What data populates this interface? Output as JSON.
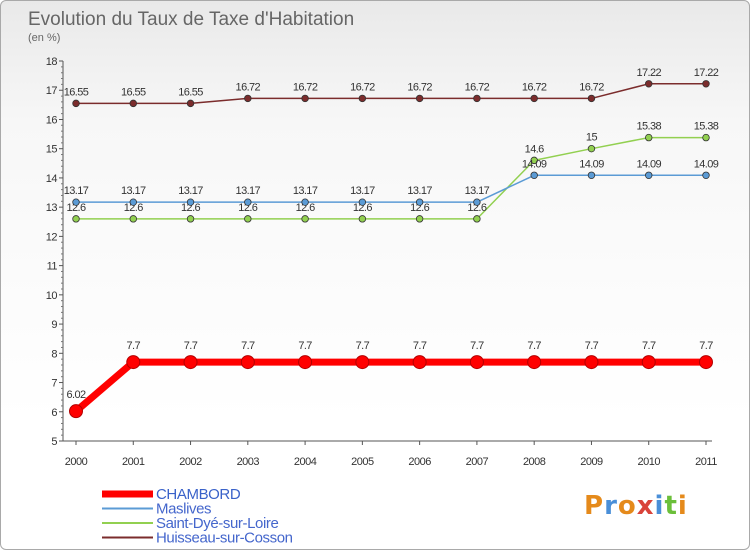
{
  "chart_data": {
    "type": "line",
    "title": "Evolution du Taux de Taxe d'Habitation",
    "subtitle": "(en %)",
    "x": [
      "2000",
      "2001",
      "2002",
      "2003",
      "2004",
      "2005",
      "2006",
      "2007",
      "2008",
      "2009",
      "2010",
      "2011"
    ],
    "ylim": [
      5,
      18
    ],
    "y_ticks": [
      5,
      6,
      7,
      8,
      9,
      10,
      11,
      12,
      13,
      14,
      15,
      16,
      17,
      18
    ],
    "grid": false,
    "legend_position": "bottom-left",
    "series": [
      {
        "name": "CHAMBORD",
        "color": "#ff0000",
        "values": [
          6.02,
          7.7,
          7.7,
          7.7,
          7.7,
          7.7,
          7.7,
          7.7,
          7.7,
          7.7,
          7.7,
          7.7
        ],
        "labels": [
          "6.02",
          "7.7",
          "7.7",
          "7.7",
          "7.7",
          "7.7",
          "7.7",
          "7.7",
          "7.7",
          "7.7",
          "7.7",
          "7.7"
        ]
      },
      {
        "name": "Maslives",
        "color": "#5b9bd5",
        "values": [
          13.17,
          13.17,
          13.17,
          13.17,
          13.17,
          13.17,
          13.17,
          13.17,
          14.09,
          14.09,
          14.09,
          14.09
        ],
        "labels": [
          "13.17",
          "13.17",
          "13.17",
          "13.17",
          "13.17",
          "13.17",
          "13.17",
          "13.17",
          "14.09",
          "14.09",
          "14.09",
          "14.09"
        ]
      },
      {
        "name": "Saint-Dyé-sur-Loire",
        "color": "#92d050",
        "values": [
          12.6,
          12.6,
          12.6,
          12.6,
          12.6,
          12.6,
          12.6,
          12.6,
          14.6,
          15,
          15.38,
          15.38
        ],
        "labels": [
          "12.6",
          "12.6",
          "12.6",
          "12.6",
          "12.6",
          "12.6",
          "12.6",
          "12.6",
          "14.6",
          "15",
          "15.38",
          "15.38"
        ]
      },
      {
        "name": "Huisseau-sur-Cosson",
        "color": "#7b2c2c",
        "values": [
          16.55,
          16.55,
          16.55,
          16.72,
          16.72,
          16.72,
          16.72,
          16.72,
          16.72,
          16.72,
          17.22,
          17.22
        ],
        "labels": [
          "16.55",
          "16.55",
          "16.55",
          "16.72",
          "16.72",
          "16.72",
          "16.72",
          "16.72",
          "16.72",
          "16.72",
          "17.22",
          "17.22"
        ]
      }
    ]
  },
  "brand": {
    "letters": [
      "P",
      "r",
      "o",
      "x",
      "i",
      "t",
      "i"
    ],
    "colors": [
      "#e58a1b",
      "#4a8fd8",
      "#e58a1b",
      "#d9433a",
      "#4a8fd8",
      "#6bbf3a",
      "#e58a1b"
    ]
  }
}
